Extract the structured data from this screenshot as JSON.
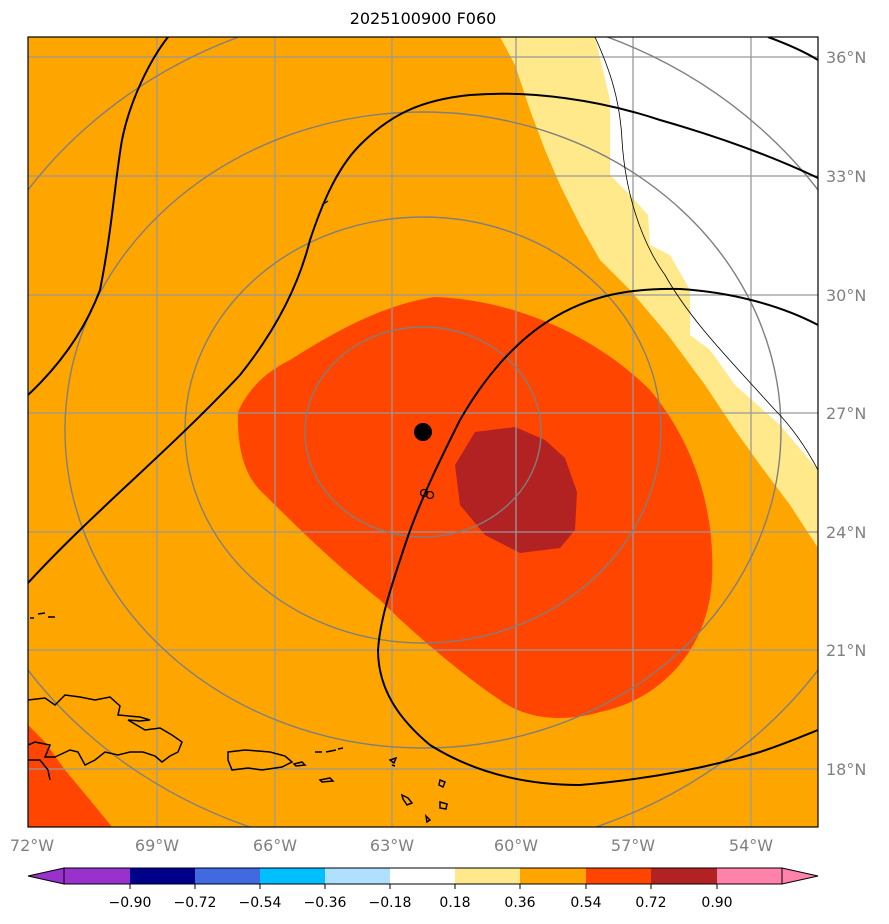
{
  "title": "2025100900 F060",
  "map": {
    "lon_range": [
      -72,
      -51.6
    ],
    "lat_range": [
      16.5,
      36.5
    ],
    "lon_ticks": [
      {
        "value": -72,
        "label": "72°W"
      },
      {
        "value": -69,
        "label": "69°W"
      },
      {
        "value": -66,
        "label": "66°W"
      },
      {
        "value": -63,
        "label": "63°W"
      },
      {
        "value": -60,
        "label": "60°W"
      },
      {
        "value": -57,
        "label": "57°W"
      },
      {
        "value": -54,
        "label": "54°W"
      }
    ],
    "lat_ticks": [
      {
        "value": 36,
        "label": "36°N"
      },
      {
        "value": 33,
        "label": "33°N"
      },
      {
        "value": 30,
        "label": "30°N"
      },
      {
        "value": 27,
        "label": "27°N"
      },
      {
        "value": 24,
        "label": "24°N"
      },
      {
        "value": 21,
        "label": "21°N"
      },
      {
        "value": 18,
        "label": "18°N"
      }
    ],
    "storm_center": {
      "lon": -62.3,
      "lat": 26.5
    },
    "fill_colors": {
      "base": "#ffa500",
      "light": "#ffe98a",
      "orange_red": "#ff4500",
      "dark_red": "#b22222",
      "white": "#ffffff"
    }
  },
  "colorbar": {
    "colors": [
      "#9932cc",
      "#00008b",
      "#4169e1",
      "#00bfff",
      "#b0e0ff",
      "#ffffff",
      "#ffe98a",
      "#ffa500",
      "#ff4500",
      "#b22222",
      "#ff82ab"
    ],
    "labels": [
      "−0.90",
      "−0.72",
      "−0.54",
      "−0.36",
      "−0.18",
      "0.18",
      "0.36",
      "0.54",
      "0.72",
      "0.90"
    ]
  }
}
